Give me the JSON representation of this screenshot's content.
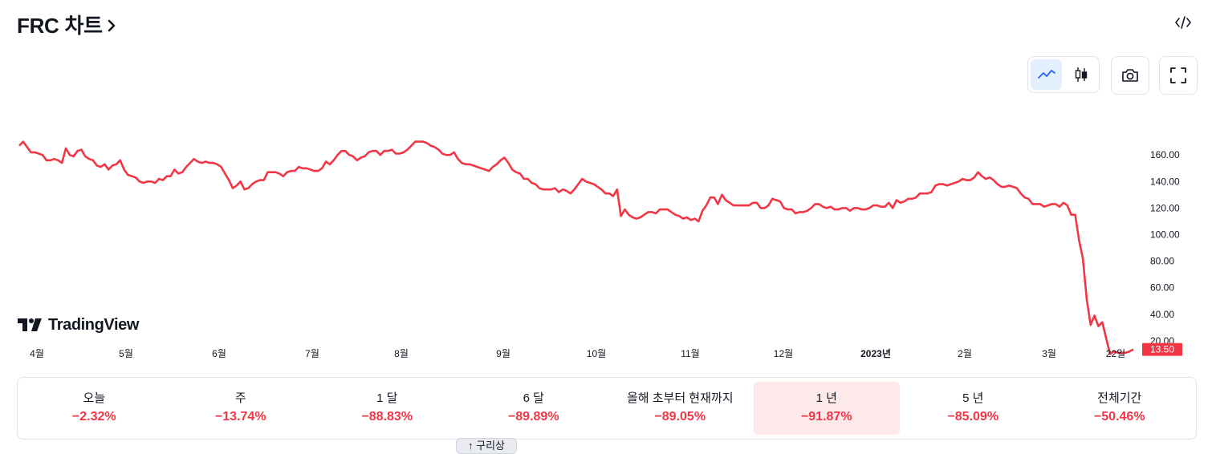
{
  "header": {
    "title": "FRC 차트",
    "embed_icon": "code-embed-icon"
  },
  "toolbar": {
    "chart_types": [
      {
        "name": "line-chart",
        "icon": "line-chart-icon",
        "active": true
      },
      {
        "name": "candle-chart",
        "icon": "candlestick-icon",
        "active": false
      }
    ],
    "snapshot_icon": "camera-icon",
    "fullscreen_icon": "fullscreen-icon"
  },
  "brand": {
    "logo_text": "TradingView"
  },
  "chart_data": {
    "type": "line",
    "series": [
      {
        "color": "#f23645",
        "values": [
          167,
          170,
          166,
          162,
          162,
          161,
          160,
          156,
          156,
          157,
          156,
          154,
          165,
          160,
          159,
          163,
          164,
          159,
          157,
          156,
          152,
          151,
          153,
          149,
          152,
          153,
          156,
          149,
          145,
          144,
          143,
          140,
          139,
          140,
          140,
          139,
          142,
          141,
          144,
          144,
          149,
          146,
          147,
          151,
          154,
          157,
          155,
          154,
          155,
          154,
          154,
          153,
          151,
          146,
          141,
          135,
          137,
          140,
          134,
          135,
          138,
          140,
          141,
          141,
          147,
          147,
          147,
          146,
          144,
          147,
          148,
          148,
          151,
          150,
          150,
          149,
          148,
          148,
          150,
          155,
          153,
          156,
          160,
          163,
          163,
          160,
          159,
          156,
          158,
          159,
          162,
          163,
          163,
          160,
          163,
          163,
          164,
          161,
          161,
          162,
          164,
          167,
          170,
          170,
          170,
          169,
          167,
          166,
          164,
          161,
          160,
          160,
          162,
          157,
          154,
          153,
          153,
          152,
          151,
          150,
          149,
          148,
          151,
          153,
          156,
          158,
          154,
          149,
          147,
          146,
          142,
          142,
          139,
          138,
          135,
          134,
          134,
          134,
          135,
          132,
          134,
          133,
          131,
          134,
          138,
          142,
          140,
          139,
          138,
          136,
          134,
          131,
          131,
          129,
          134,
          114,
          119,
          115,
          113,
          112,
          113,
          115,
          117,
          117,
          116,
          119,
          119,
          119,
          117,
          115,
          114,
          112,
          113,
          111,
          112,
          110,
          118,
          122,
          128,
          128,
          123,
          130,
          126,
          124,
          122,
          122,
          122,
          122,
          122,
          124,
          124,
          120,
          120,
          122,
          127,
          126,
          125,
          120,
          119,
          119,
          116,
          117,
          117,
          118,
          120,
          123,
          123,
          121,
          120,
          121,
          119,
          119,
          120,
          120,
          118,
          120,
          120,
          119,
          119,
          120,
          122,
          122,
          121,
          121,
          124,
          120,
          126,
          124,
          125,
          127,
          127,
          128,
          131,
          131,
          131,
          132,
          137,
          138,
          138,
          137,
          138,
          139,
          140,
          142,
          141,
          141,
          143,
          147,
          144,
          142,
          143,
          141,
          138,
          136,
          136,
          137,
          136,
          135,
          131,
          128,
          127,
          123,
          123,
          123,
          121,
          122,
          123,
          123,
          121,
          124,
          122,
          115,
          115,
          96,
          82,
          51,
          32,
          39,
          31,
          34,
          22,
          10,
          12,
          11,
          11,
          11,
          12,
          13.5
        ]
      }
    ],
    "x_tick_labels": [
      "4월",
      "5월",
      "6월",
      "7월",
      "8월",
      "9월",
      "10월",
      "11월",
      "12월",
      "2023년",
      "2월",
      "3월",
      "22일"
    ],
    "y_tick_labels": [
      "160.00",
      "140.00",
      "120.00",
      "100.00",
      "80.00",
      "60.00",
      "40.00",
      "20.00"
    ],
    "ylim": [
      0,
      180
    ],
    "last_price_label": "13.50",
    "last_price": 13.5,
    "grid": false
  },
  "performance": [
    {
      "label": "오늘",
      "value": "−2.32%",
      "active": false
    },
    {
      "label": "주",
      "value": "−13.74%",
      "active": false
    },
    {
      "label": "1 달",
      "value": "−88.83%",
      "active": false
    },
    {
      "label": "6 달",
      "value": "−89.89%",
      "active": false
    },
    {
      "label": "올해 초부터 현재까지",
      "value": "−89.05%",
      "active": false
    },
    {
      "label": "1 년",
      "value": "−91.87%",
      "active": true
    },
    {
      "label": "5 년",
      "value": "−85.09%",
      "active": false
    },
    {
      "label": "전체기간",
      "value": "−50.46%",
      "active": false
    }
  ],
  "footer": {
    "scroll_tab_label": "↑ 구리상"
  }
}
